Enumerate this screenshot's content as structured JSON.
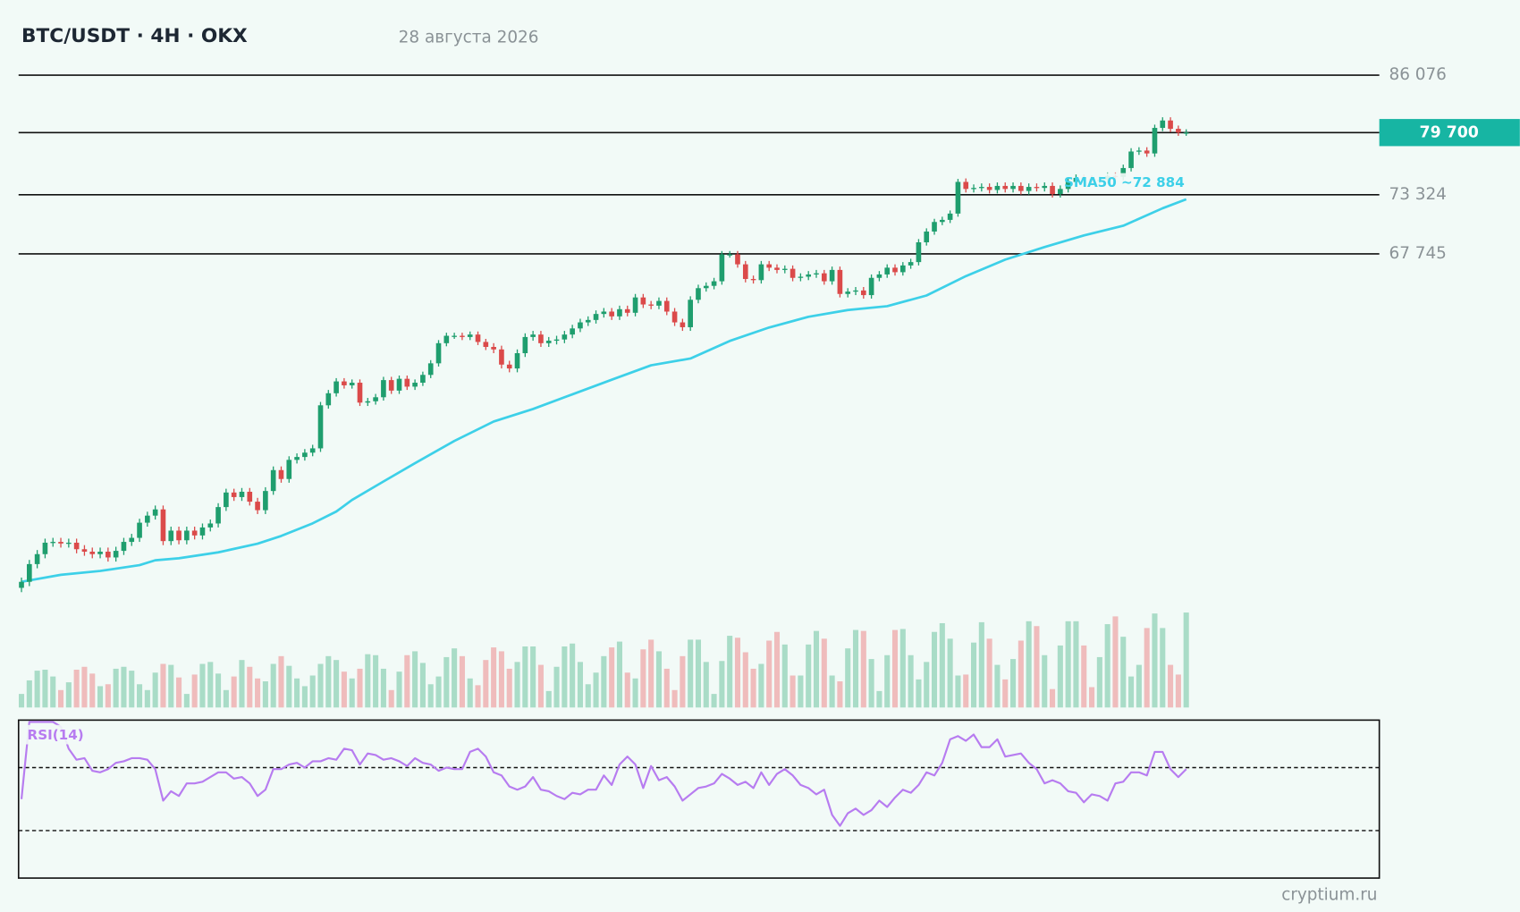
{
  "chart_data": {
    "type": "candlestick",
    "title": "BTC/USDT · 4H · OKX",
    "date": "28 августа 2026",
    "source": "cryptium.ru",
    "log_scale": true,
    "ylim": [
      42000,
      90000
    ],
    "yticks": [
      {
        "value": 86076,
        "label": "86 076"
      },
      {
        "value": 73324,
        "label": "73 324"
      },
      {
        "value": 67745,
        "label": "67 745"
      }
    ],
    "last_price": {
      "value": 79700,
      "label": "79 700",
      "color": "#17b5a3"
    },
    "up_color": "#1f9e6e",
    "down_color": "#db4a4a",
    "open": [
      43300,
      43650,
      44700,
      45300,
      46000,
      46050,
      45950,
      46000,
      45600,
      45450,
      45300,
      45450,
      45100,
      45500,
      46050,
      46300,
      47250,
      47700,
      48100,
      46100,
      46750,
      46150,
      46750,
      46450,
      46950,
      47200,
      48250,
      49200,
      48900,
      49250,
      48600,
      48050,
      49300,
      50700,
      50100,
      51400,
      51600,
      51900,
      52200,
      55300,
      56200,
      57100,
      56800,
      57000,
      55500,
      55600,
      55900,
      57200,
      56400,
      57300,
      56700,
      57000,
      57600,
      58500,
      60100,
      60700,
      60700,
      60600,
      60800,
      60200,
      59800,
      59600,
      58400,
      58100,
      59300,
      60600,
      60800,
      60100,
      60300,
      60400,
      60800,
      61300,
      61800,
      62000,
      62500,
      62700,
      62300,
      62900,
      62600,
      63900,
      63300,
      63200,
      63600,
      62700,
      61800,
      61400,
      63700,
      64700,
      64900,
      65300,
      67700,
      67700,
      66800,
      65500,
      65400,
      66800,
      66500,
      66300,
      66400,
      65600,
      65700,
      65900,
      66000,
      65300,
      66300,
      64200,
      64400,
      64500,
      64100,
      65600,
      65900,
      66500,
      66100,
      66700,
      67000,
      68800,
      69800,
      70700,
      70900,
      71500,
      74600,
      73900,
      74000,
      74100,
      73800,
      74200,
      73900,
      74200,
      73700,
      74100,
      74000,
      74200,
      73400,
      73900,
      74600,
      75000,
      74900,
      74700,
      74800,
      75200,
      75100,
      76000,
      77700,
      77800,
      77500,
      80200,
      81000,
      80100,
      79700
    ],
    "high": [
      43900,
      44950,
      45550,
      46250,
      46300,
      46300,
      46250,
      46250,
      45850,
      45700,
      45700,
      45700,
      45750,
      46300,
      46550,
      47500,
      47950,
      48350,
      48350,
      47000,
      47000,
      47000,
      47000,
      47200,
      47450,
      48500,
      49450,
      49450,
      49500,
      49500,
      48850,
      49550,
      50950,
      50950,
      51650,
      51850,
      52150,
      52450,
      55550,
      56450,
      57350,
      57350,
      57250,
      57250,
      55850,
      56150,
      57450,
      57450,
      57550,
      57550,
      57250,
      57850,
      58750,
      60350,
      60950,
      60950,
      60950,
      61050,
      61050,
      60450,
      60100,
      59900,
      58700,
      59600,
      60900,
      61100,
      61100,
      60600,
      60700,
      61100,
      61600,
      62100,
      62300,
      62800,
      63000,
      63000,
      63200,
      63200,
      64200,
      64200,
      63600,
      63900,
      63900,
      63000,
      62100,
      64000,
      65000,
      65200,
      65600,
      68000,
      68000,
      68000,
      67100,
      65800,
      67100,
      67100,
      66800,
      66700,
      66700,
      66000,
      66200,
      66300,
      66300,
      66600,
      66600,
      64700,
      64800,
      64800,
      65900,
      66200,
      66800,
      66800,
      67000,
      67300,
      69100,
      70100,
      71000,
      71200,
      71800,
      74900,
      74950,
      74350,
      74450,
      74450,
      74550,
      74550,
      74550,
      74550,
      74450,
      74450,
      74550,
      74550,
      74250,
      74950,
      75350,
      75350,
      75250,
      75150,
      75550,
      75550,
      76350,
      78050,
      78150,
      78150,
      80550,
      81350,
      81350,
      80450,
      80050
    ],
    "low": [
      43050,
      43400,
      44450,
      45050,
      45750,
      45700,
      45700,
      45350,
      45200,
      45050,
      45050,
      44850,
      44850,
      45250,
      45800,
      46050,
      47000,
      47450,
      45850,
      45850,
      45900,
      45900,
      46200,
      46200,
      46700,
      46950,
      48000,
      48650,
      48650,
      48350,
      47800,
      47800,
      49050,
      49850,
      49850,
      51150,
      51350,
      51650,
      51950,
      55050,
      55950,
      56550,
      56550,
      55250,
      55250,
      55350,
      55650,
      56150,
      56150,
      56450,
      56450,
      56750,
      57350,
      58250,
      59850,
      60450,
      60350,
      60350,
      59950,
      59550,
      59300,
      58100,
      57800,
      57800,
      59000,
      60300,
      59800,
      59800,
      60000,
      60100,
      60500,
      61000,
      61500,
      61700,
      62200,
      62000,
      62000,
      62300,
      62300,
      63000,
      62900,
      62900,
      62400,
      61500,
      61100,
      61100,
      63400,
      64400,
      64600,
      65000,
      67400,
      66500,
      65200,
      65100,
      65100,
      66200,
      66000,
      66000,
      65300,
      65300,
      65400,
      65600,
      65000,
      65000,
      63900,
      63900,
      64100,
      63800,
      63800,
      65300,
      65600,
      65800,
      65800,
      66400,
      66700,
      68500,
      69500,
      70400,
      70600,
      71200,
      73550,
      73550,
      73650,
      73450,
      73450,
      73550,
      73550,
      73350,
      73350,
      73650,
      73650,
      73050,
      73050,
      73550,
      74250,
      74550,
      74350,
      74350,
      74450,
      74750,
      74750,
      75650,
      77350,
      77150,
      77150,
      79850,
      79750,
      79350,
      79350
    ],
    "close": [
      43650,
      44700,
      45300,
      46000,
      46050,
      45950,
      46000,
      45600,
      45450,
      45300,
      45450,
      45100,
      45500,
      46050,
      46300,
      47250,
      47700,
      48100,
      46100,
      46750,
      46150,
      46750,
      46450,
      46950,
      47200,
      48250,
      49200,
      48900,
      49250,
      48600,
      48050,
      49300,
      50700,
      50100,
      51400,
      51600,
      51900,
      52200,
      55300,
      56200,
      57100,
      56800,
      57000,
      55500,
      55600,
      55900,
      57200,
      56400,
      57300,
      56700,
      57000,
      57600,
      58500,
      60100,
      60700,
      60700,
      60600,
      60800,
      60200,
      59800,
      59600,
      58400,
      58100,
      59300,
      60600,
      60800,
      60100,
      60300,
      60400,
      60800,
      61300,
      61800,
      62000,
      62500,
      62700,
      62300,
      62900,
      62600,
      63900,
      63300,
      63200,
      63600,
      62700,
      61800,
      61400,
      63700,
      64700,
      64900,
      65300,
      67700,
      67700,
      66800,
      65500,
      65400,
      66800,
      66500,
      66300,
      66400,
      65600,
      65700,
      65900,
      66000,
      65300,
      66300,
      64200,
      64400,
      64500,
      64100,
      65600,
      65900,
      66500,
      66100,
      66700,
      67000,
      68800,
      69800,
      70700,
      70900,
      71500,
      74600,
      73900,
      74000,
      74100,
      73800,
      74200,
      73900,
      74200,
      73700,
      74100,
      74000,
      74200,
      73400,
      73900,
      74600,
      75000,
      74900,
      74700,
      74800,
      75200,
      75100,
      76000,
      77700,
      77800,
      77500,
      80200,
      81000,
      80100,
      79700,
      79700
    ],
    "sma": {
      "label": "SMA50 ~72 884",
      "color": "#3dd0e8",
      "x": [
        0,
        5,
        10,
        15,
        17,
        20,
        25,
        30,
        33,
        37,
        40,
        42,
        46,
        50,
        55,
        60,
        65,
        70,
        75,
        80,
        85,
        90,
        95,
        100,
        105,
        110,
        115,
        120,
        125,
        130,
        135,
        140,
        145,
        148
      ],
      "values": [
        43650,
        44060,
        44290,
        44640,
        44930,
        45050,
        45410,
        45940,
        46420,
        47210,
        47960,
        48710,
        49930,
        51170,
        52720,
        54110,
        55030,
        56120,
        57230,
        58350,
        58880,
        60280,
        61380,
        62260,
        62830,
        63160,
        64070,
        65750,
        67220,
        68360,
        69440,
        70350,
        72010,
        72884
      ]
    },
    "volume": {
      "up_color": "#a9dcc7",
      "down_color": "#efbcbc",
      "values": [
        14,
        28,
        38,
        39,
        32,
        18,
        26,
        39,
        42,
        35,
        22,
        24,
        40,
        42,
        38,
        24,
        18,
        36,
        45,
        44,
        31,
        14,
        34,
        45,
        47,
        35,
        18,
        32,
        49,
        42,
        30,
        27,
        45,
        53,
        43,
        30,
        22,
        33,
        45,
        53,
        49,
        37,
        30,
        40,
        55,
        54,
        40,
        18,
        37,
        54,
        58,
        46,
        24,
        32,
        52,
        61,
        53,
        30,
        23,
        49,
        62,
        58,
        40,
        47,
        63,
        63,
        44,
        17,
        42,
        63,
        66,
        47,
        24,
        36,
        53,
        62,
        68,
        36,
        30,
        60,
        70,
        58,
        40,
        18,
        53,
        70,
        70,
        47,
        14,
        48,
        74,
        72,
        57,
        40,
        45,
        69,
        78,
        65,
        33,
        33,
        65,
        79,
        71,
        33,
        27,
        61,
        80,
        79,
        50,
        17,
        54,
        80,
        81,
        54,
        29,
        47,
        78,
        87,
        71,
        33,
        34,
        67,
        88,
        71,
        44,
        29,
        50,
        69,
        89,
        84,
        54,
        19,
        64,
        89,
        89,
        64,
        21,
        52,
        86,
        94,
        73,
        32,
        44,
        82,
        97,
        82,
        44,
        34,
        98
      ]
    },
    "rsi": {
      "label": "RSI(14)",
      "color": "#b77cf0",
      "ylim": [
        0,
        100
      ],
      "levels": [
        70,
        30
      ],
      "values": [
        50,
        99,
        99,
        99,
        99,
        96,
        82,
        75,
        76,
        68,
        67,
        69,
        73,
        74,
        76,
        76,
        75,
        69,
        49,
        55,
        52,
        60,
        60,
        61,
        64,
        67,
        67,
        63,
        64,
        60,
        52,
        56,
        69,
        69,
        72,
        73,
        70,
        74,
        74,
        76,
        75,
        82,
        81,
        72,
        79,
        78,
        75,
        76,
        74,
        71,
        76,
        73,
        72,
        68,
        70,
        69,
        69,
        80,
        82,
        77,
        67,
        65,
        58,
        56,
        58,
        64,
        56,
        55,
        52,
        50,
        54,
        53,
        56,
        56,
        65,
        59,
        72,
        77,
        72,
        57,
        71,
        62,
        64,
        58,
        49,
        53,
        57,
        58,
        60,
        66,
        63,
        59,
        61,
        57,
        67,
        59,
        66,
        69,
        65,
        59,
        57,
        53,
        56,
        40,
        33,
        41,
        44,
        40,
        43,
        49,
        45,
        51,
        56,
        54,
        59,
        67,
        65,
        73,
        88,
        90,
        87,
        91,
        83,
        83,
        88,
        77,
        78,
        79,
        73,
        69,
        60,
        62,
        60,
        55,
        54,
        48,
        53,
        52,
        49,
        60,
        61,
        67,
        67,
        65,
        80,
        80,
        69,
        64,
        69
      ]
    }
  }
}
